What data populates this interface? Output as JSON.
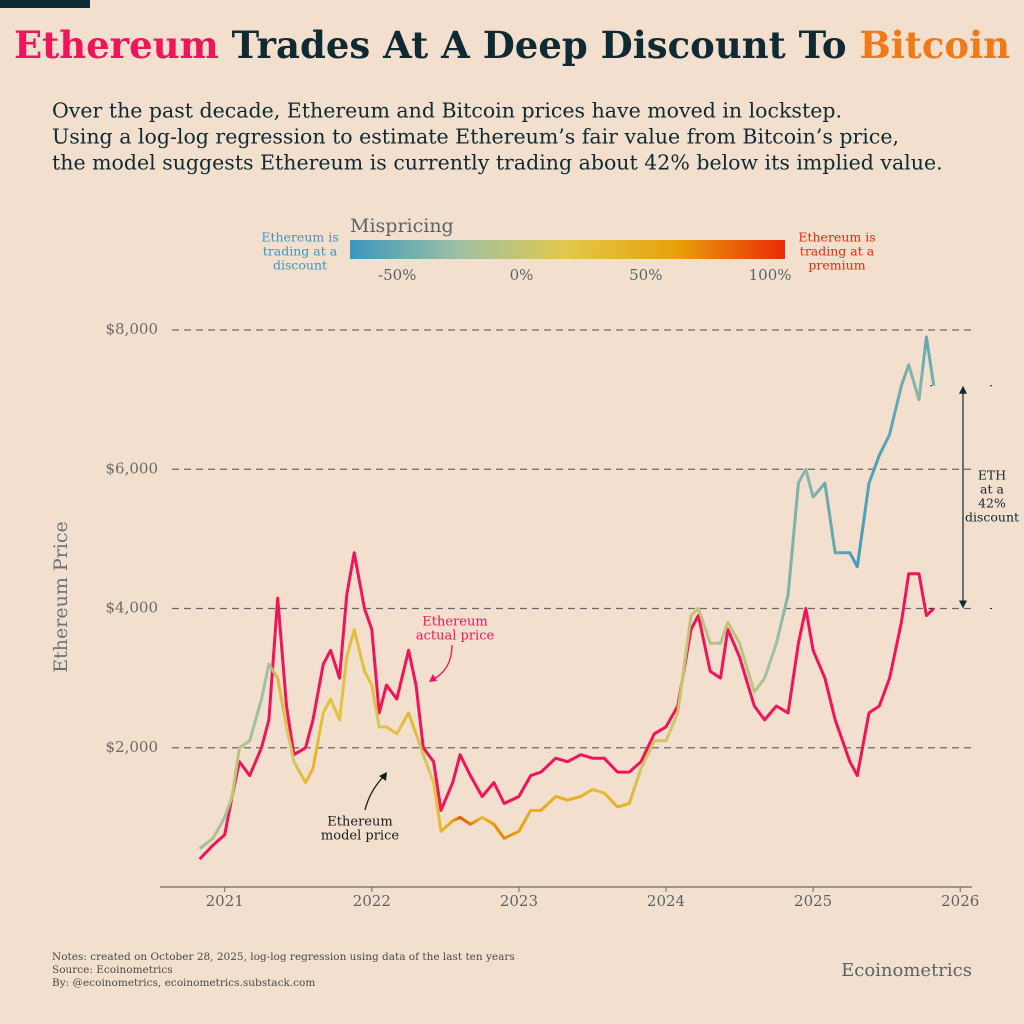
{
  "chart_data": {
    "type": "line",
    "title_parts": [
      {
        "text": "Ethereum",
        "color": "#f0145a"
      },
      {
        "text": " Trades At A Deep Discount To ",
        "color": "#0f2a33"
      },
      {
        "text": "Bitcoin",
        "color": "#f07a1a"
      }
    ],
    "subtitle": [
      "Over the past decade, Ethereum and Bitcoin prices have moved in lockstep.",
      "Using a log-log regression to estimate Ethereum’s fair value from Bitcoin’s price,",
      "the model suggests Ethereum is currently trading about 42% below its implied value."
    ],
    "colorbar": {
      "title": "Mispricing",
      "left_label": [
        "Ethereum is",
        "trading at a",
        "discount"
      ],
      "right_label": [
        "Ethereum is",
        "trading at a",
        "premium"
      ],
      "lim": [
        -69,
        106
      ],
      "ticks": [
        {
          "value": -50,
          "label": "-50%"
        },
        {
          "value": 0,
          "label": "0%"
        },
        {
          "value": 50,
          "label": "50%"
        },
        {
          "value": 100,
          "label": "100%"
        }
      ],
      "colors": [
        "#3a97be",
        "#9fc0a4",
        "#e2c84c",
        "#e8a10a",
        "#ea2a08"
      ]
    },
    "y_label": "Ethereum Price",
    "xlim": [
      2020.56,
      2026.08
    ],
    "xticks": [
      2021,
      2022,
      2023,
      2024,
      2025,
      2026
    ],
    "ylim": [
      0,
      8000
    ],
    "yticks": [
      {
        "value": 2000,
        "label": "$2,000"
      },
      {
        "value": 4000,
        "label": "$4,000"
      },
      {
        "value": 6000,
        "label": "$6,000"
      },
      {
        "value": 8000,
        "label": "$8,000"
      }
    ],
    "grid": true,
    "x": [
      2020.83,
      2020.92,
      2021.0,
      2021.05,
      2021.1,
      2021.17,
      2021.25,
      2021.3,
      2021.36,
      2021.42,
      2021.47,
      2021.55,
      2021.6,
      2021.67,
      2021.72,
      2021.78,
      2021.83,
      2021.88,
      2021.95,
      2022.0,
      2022.05,
      2022.1,
      2022.17,
      2022.25,
      2022.3,
      2022.35,
      2022.42,
      2022.47,
      2022.55,
      2022.6,
      2022.67,
      2022.75,
      2022.83,
      2022.9,
      2023.0,
      2023.08,
      2023.15,
      2023.25,
      2023.33,
      2023.42,
      2023.5,
      2023.58,
      2023.67,
      2023.75,
      2023.83,
      2023.92,
      2024.0,
      2024.08,
      2024.17,
      2024.22,
      2024.3,
      2024.37,
      2024.42,
      2024.5,
      2024.6,
      2024.67,
      2024.75,
      2024.83,
      2024.9,
      2024.95,
      2025.0,
      2025.08,
      2025.15,
      2025.25,
      2025.3,
      2025.38,
      2025.45,
      2025.52,
      2025.6,
      2025.65,
      2025.72,
      2025.77,
      2025.82
    ],
    "series": [
      {
        "color": "#f0145a",
        "values": [
          400,
          600,
          750,
          1300,
          1800,
          1600,
          2000,
          2400,
          4150,
          2600,
          1900,
          2000,
          2400,
          3200,
          3400,
          3000,
          4200,
          4800,
          4000,
          3700,
          2500,
          2900,
          2700,
          3400,
          2900,
          2000,
          1800,
          1100,
          1500,
          1900,
          1600,
          1300,
          1500,
          1200,
          1300,
          1600,
          1650,
          1850,
          1800,
          1900,
          1850,
          1850,
          1650,
          1650,
          1800,
          2200,
          2300,
          2600,
          3700,
          3900,
          3100,
          3000,
          3700,
          3300,
          2600,
          2400,
          2600,
          2500,
          3500,
          4000,
          3400,
          3000,
          2400,
          1800,
          1600,
          2500,
          2600,
          3000,
          3800,
          4500,
          4500,
          3900,
          4000
        ]
      },
      {
        "values": [
          550,
          700,
          1000,
          1300,
          2000,
          2100,
          2700,
          3200,
          3000,
          2300,
          1800,
          1500,
          1700,
          2500,
          2700,
          2400,
          3300,
          3700,
          3100,
          2900,
          2300,
          2300,
          2200,
          2500,
          2200,
          1900,
          1500,
          800,
          950,
          1000,
          900,
          1000,
          900,
          700,
          800,
          1100,
          1100,
          1300,
          1250,
          1300,
          1400,
          1350,
          1150,
          1200,
          1700,
          2100,
          2100,
          2500,
          3900,
          4000,
          3500,
          3500,
          3800,
          3500,
          2800,
          3000,
          3500,
          4200,
          5800,
          6000,
          5600,
          5800,
          4800,
          4800,
          4600,
          5800,
          6200,
          6500,
          7200,
          7500,
          7000,
          7900,
          7200
        ]
      }
    ],
    "annotation_actual": [
      "Ethereum",
      "actual price"
    ],
    "annotation_model": [
      "Ethereum",
      "model price"
    ],
    "annotation_discount": [
      "ETH",
      "at a",
      "42%",
      "discount"
    ],
    "notes": [
      "Notes: created on October 28, 2025, log-log regression using data of the last ten years",
      "Source: Ecoinometrics",
      "By: @ecoinometrics, ecoinometrics.substack.com"
    ],
    "brand": "Ecoinometrics"
  }
}
